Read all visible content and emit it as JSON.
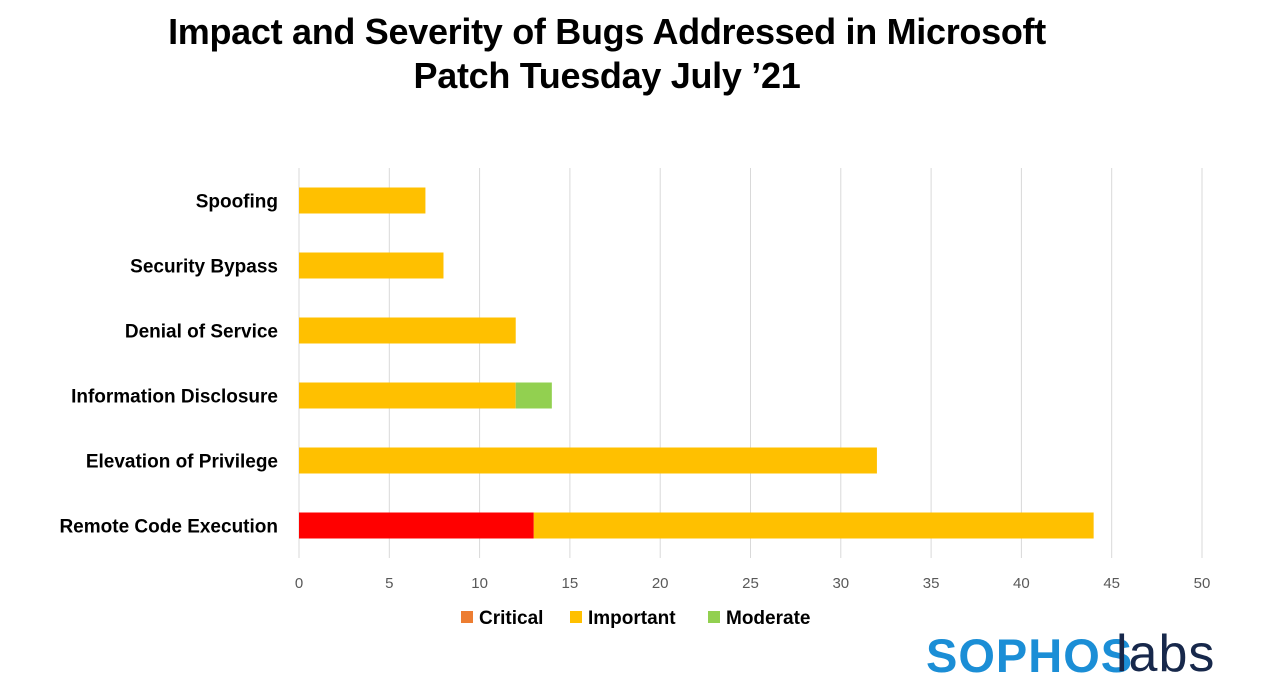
{
  "title_line1": "Impact and Severity of Bugs Addressed in Microsoft",
  "title_line2": "Patch Tuesday July ’21",
  "chart_data": {
    "type": "bar",
    "orientation": "horizontal",
    "stacked": true,
    "categories": [
      "Spoofing",
      "Security Bypass",
      "Denial of Service",
      "Information Disclosure",
      "Elevation of Privilege",
      "Remote Code Execution"
    ],
    "series": [
      {
        "name": "Critical",
        "color": "#ff0000",
        "legend_color": "#ed7d31",
        "values": [
          0,
          0,
          0,
          0,
          0,
          13
        ]
      },
      {
        "name": "Important",
        "color": "#ffc000",
        "legend_color": "#ffc000",
        "values": [
          7,
          8,
          12,
          12,
          32,
          31
        ]
      },
      {
        "name": "Moderate",
        "color": "#92d050",
        "legend_color": "#92d050",
        "values": [
          0,
          0,
          0,
          2,
          0,
          0
        ]
      }
    ],
    "xlim": [
      0,
      50
    ],
    "xticks": [
      "0",
      "5",
      "10",
      "15",
      "20",
      "25",
      "30",
      "35",
      "40",
      "45",
      "50"
    ],
    "grid": true,
    "legend_position": "bottom"
  },
  "logo": {
    "part1": "SOPHOS",
    "part2": "labs"
  }
}
